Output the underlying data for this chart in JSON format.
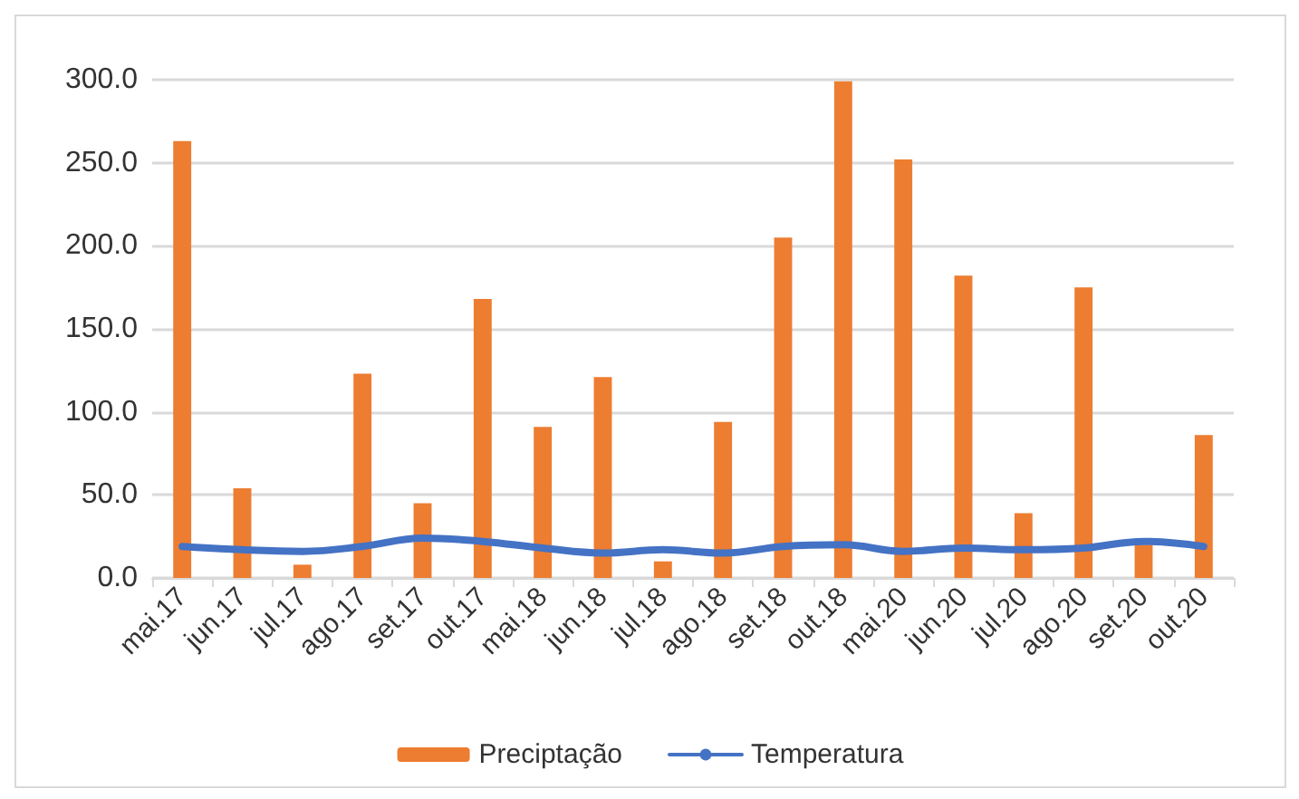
{
  "chart_data": {
    "type": "bar",
    "categories": [
      "mai.17",
      "jun.17",
      "jul.17",
      "ago.17",
      "set.17",
      "out.17",
      "mai.18",
      "jun.18",
      "jul.18",
      "ago.18",
      "set.18",
      "out.18",
      "mai.20",
      "jun.20",
      "jul.20",
      "ago.20",
      "set.20",
      "out.20"
    ],
    "series": [
      {
        "name": "Preciptação",
        "color": "#ed7d31",
        "values": [
          263,
          54,
          8,
          123,
          45,
          168,
          91,
          121,
          10,
          94,
          205,
          299,
          252,
          182,
          39,
          175,
          20,
          86
        ]
      },
      {
        "name": "Temperatura",
        "type": "line",
        "color": "#4472c4",
        "values": [
          19,
          17,
          16,
          19,
          24,
          22,
          18,
          15,
          17,
          15,
          19,
          20,
          16,
          18,
          17,
          18,
          22,
          19
        ]
      }
    ],
    "ylim": [
      0,
      300
    ],
    "yticks": [
      {
        "value": 0,
        "label": "0.0"
      },
      {
        "value": 50,
        "label": "50.0"
      },
      {
        "value": 100,
        "label": "100.0"
      },
      {
        "value": 150,
        "label": "150.0"
      },
      {
        "value": 200,
        "label": "200.0"
      },
      {
        "value": 250,
        "label": "250.0"
      },
      {
        "value": 300,
        "label": "300.0"
      }
    ],
    "grid": "y",
    "legend": "bottom",
    "marker": "none",
    "line_style": "solid"
  }
}
